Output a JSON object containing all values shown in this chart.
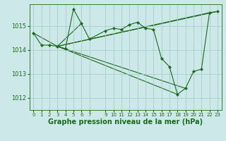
{
  "title": "Graphe pression niveau de la mer (hPa)",
  "bg_color": "#cce8e8",
  "grid_color": "#aacccc",
  "line_color": "#1a6b1a",
  "x_ticks": [
    0,
    1,
    2,
    3,
    4,
    5,
    6,
    7,
    9,
    10,
    11,
    12,
    13,
    14,
    15,
    16,
    17,
    18,
    19,
    20,
    21,
    22,
    23
  ],
  "xlim": [
    -0.5,
    23.5
  ],
  "ylim": [
    1011.5,
    1015.9
  ],
  "yticks": [
    1012,
    1013,
    1014,
    1015
  ],
  "main_series": [
    [
      0,
      1014.7
    ],
    [
      1,
      1014.2
    ],
    [
      2,
      1014.2
    ],
    [
      3,
      1014.15
    ],
    [
      4,
      1014.05
    ],
    [
      5,
      1015.7
    ],
    [
      6,
      1015.1
    ],
    [
      7,
      1014.45
    ],
    [
      9,
      1014.8
    ],
    [
      10,
      1014.9
    ],
    [
      11,
      1014.85
    ],
    [
      12,
      1015.05
    ],
    [
      13,
      1015.15
    ],
    [
      14,
      1014.9
    ],
    [
      15,
      1014.85
    ],
    [
      16,
      1013.65
    ],
    [
      17,
      1013.3
    ],
    [
      18,
      1012.15
    ],
    [
      19,
      1012.4
    ],
    [
      20,
      1013.1
    ],
    [
      21,
      1013.2
    ],
    [
      22,
      1015.55
    ],
    [
      23,
      1015.6
    ]
  ],
  "fan_lines": [
    [
      [
        3,
        1014.15
      ],
      [
        0,
        1014.7
      ]
    ],
    [
      [
        3,
        1014.15
      ],
      [
        6,
        1015.1
      ]
    ],
    [
      [
        3,
        1014.15
      ],
      [
        22,
        1015.55
      ]
    ],
    [
      [
        3,
        1014.15
      ],
      [
        23,
        1015.6
      ]
    ],
    [
      [
        3,
        1014.15
      ],
      [
        19,
        1012.4
      ]
    ],
    [
      [
        3,
        1014.15
      ],
      [
        18,
        1012.15
      ]
    ]
  ],
  "title_fontsize": 7,
  "tick_fontsize": 5,
  "ytick_fontsize": 6
}
